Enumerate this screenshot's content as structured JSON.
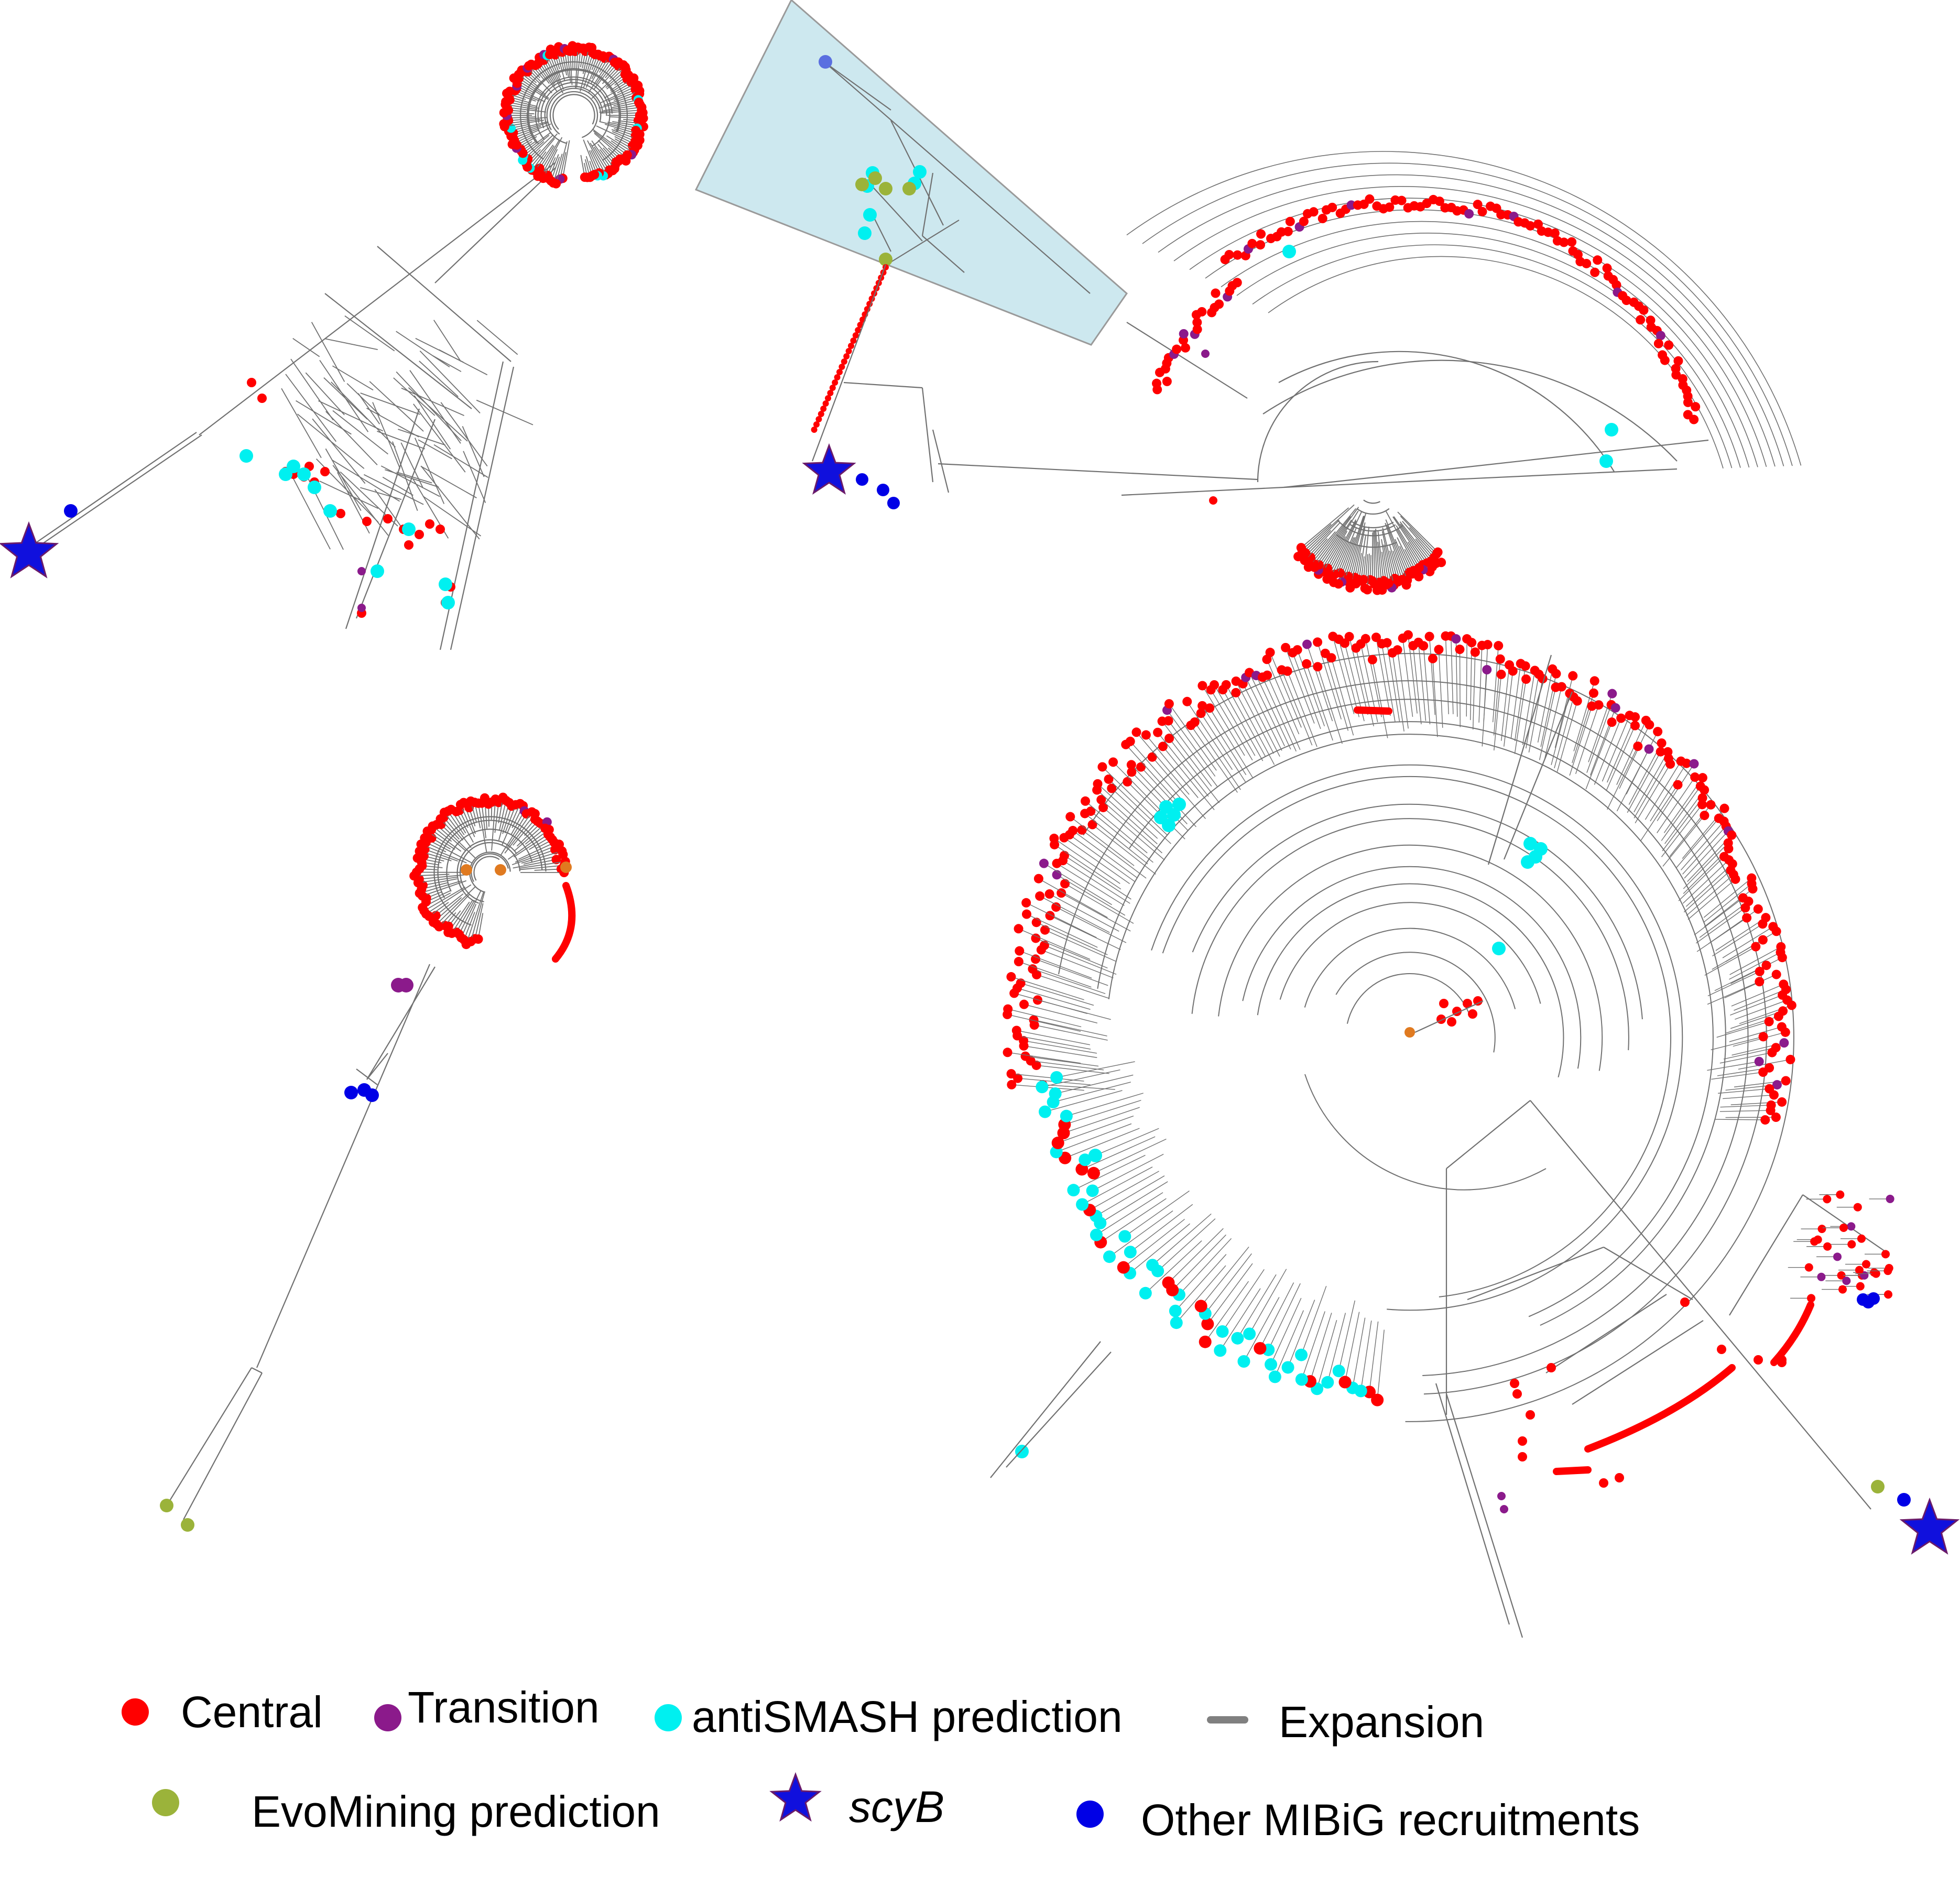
{
  "colors": {
    "central": "#ff0000",
    "transition": "#8b1a8b",
    "antismash": "#00f0f0",
    "evomining": "#9bb33a",
    "scyB": "#1010dd",
    "mibig": "#0000e6",
    "expansion": "#808080",
    "branch": "#707070",
    "highlight_fill": "#cde8ef",
    "highlight_stroke": "#9a9a9a"
  },
  "legend": {
    "central": {
      "label": "Central",
      "icon": "red-dot-icon"
    },
    "transition": {
      "label": "Transition",
      "icon": "purple-dot-icon"
    },
    "antismash": {
      "label": "antiSMASH prediction",
      "icon": "cyan-dot-icon"
    },
    "expansion": {
      "label": "Expansion",
      "icon": "grey-dash-icon"
    },
    "evomining": {
      "label": "EvoMining prediction",
      "icon": "olive-dot-icon"
    },
    "scyb": {
      "label": "scyB",
      "icon": "blue-star-icon"
    },
    "mibig": {
      "label": "Other MIBiG recruitments",
      "icon": "blue-dot-icon"
    }
  }
}
